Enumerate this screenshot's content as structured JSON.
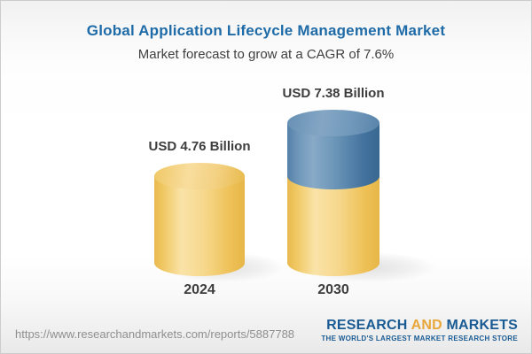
{
  "header": {
    "title": "Global Application Lifecycle Management Market",
    "subtitle": "Market forecast to grow at a CAGR of 7.6%"
  },
  "chart_data": {
    "type": "bar",
    "variant": "3d-cylinder",
    "title": "Global Application Lifecycle Management Market",
    "subtitle": "Market forecast to grow at a CAGR of 7.6%",
    "categories": [
      "2024",
      "2030"
    ],
    "values": [
      4.76,
      7.38
    ],
    "unit": "USD Billion",
    "data_labels": [
      "USD 4.76 Billion",
      "USD 7.38 Billion"
    ],
    "cagr_percent": 7.6,
    "legend": "none",
    "axes": "none",
    "grid": false,
    "colors": {
      "base_segment": "#F2C763",
      "growth_segment": "#5585AC",
      "title_text": "#1E6BA8",
      "label_text": "#3D3D3D"
    }
  },
  "bars": [
    {
      "year": "2024",
      "value_label": "USD 4.76 Billion"
    },
    {
      "year": "2030",
      "value_label": "USD 7.38 Billion"
    }
  ],
  "footer": {
    "url": "https://www.researchandmarkets.com/reports/5887788",
    "logo": {
      "word1": "RESEARCH",
      "word2": "AND",
      "word3": "MARKETS",
      "tagline": "THE WORLD'S LARGEST MARKET RESEARCH STORE",
      "blue": "#1A5B94",
      "gold": "#E9A63B"
    }
  }
}
